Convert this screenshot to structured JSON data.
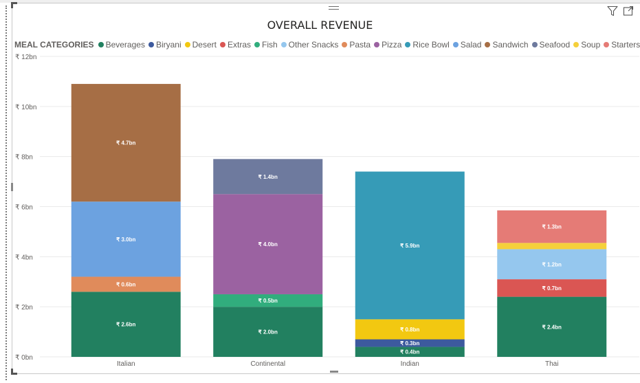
{
  "title": "OVERALL REVENUE",
  "legend": {
    "title": "MEAL CATEGORIES",
    "items": [
      {
        "label": "Beverages",
        "color": "#228060"
      },
      {
        "label": "Biryani",
        "color": "#3D5A9E"
      },
      {
        "label": "Desert",
        "color": "#F2C811"
      },
      {
        "label": "Extras",
        "color": "#DA5653"
      },
      {
        "label": "Fish",
        "color": "#31AD7D"
      },
      {
        "label": "Other Snacks",
        "color": "#95C7EE"
      },
      {
        "label": "Pasta",
        "color": "#E08B5B"
      },
      {
        "label": "Pizza",
        "color": "#9B62A1"
      },
      {
        "label": "Rice Bowl",
        "color": "#369BB7"
      },
      {
        "label": "Salad",
        "color": "#6CA2E0"
      },
      {
        "label": "Sandwich",
        "color": "#A66E45"
      },
      {
        "label": "Seafood",
        "color": "#6E7A9E"
      },
      {
        "label": "Soup",
        "color": "#F5D03B"
      },
      {
        "label": "Starters",
        "color": "#E57B76"
      }
    ]
  },
  "icons": {
    "filter": "filter-icon",
    "focus": "focus-mode-icon",
    "drag": "drag-handle-icon"
  },
  "chart_data": {
    "type": "bar",
    "stacked": true,
    "title": "OVERALL REVENUE",
    "legend_title": "MEAL CATEGORIES",
    "legend_position": "top-left",
    "grid": true,
    "ylim": [
      0,
      12
    ],
    "y_ticks": [
      "₹ 0bn",
      "₹ 2bn",
      "₹ 4bn",
      "₹ 6bn",
      "₹ 8bn",
      "₹ 10bn",
      "₹ 12bn"
    ],
    "y_tick_values": [
      0,
      2,
      4,
      6,
      8,
      10,
      12
    ],
    "categories": [
      "Italian",
      "Continental",
      "Indian",
      "Thai"
    ],
    "series": [
      {
        "name": "Beverages",
        "color": "#228060",
        "values": [
          2.6,
          2.0,
          0.4,
          2.4
        ],
        "labels": [
          "₹ 2.6bn",
          "₹ 2.0bn",
          "₹ 0.4bn",
          "₹ 2.4bn"
        ]
      },
      {
        "name": "Biryani",
        "color": "#3D5A9E",
        "values": [
          0,
          0,
          0.3,
          0
        ],
        "labels": [
          "",
          "",
          "₹ 0.3bn",
          ""
        ]
      },
      {
        "name": "Desert",
        "color": "#F2C811",
        "values": [
          0,
          0,
          0.8,
          0
        ],
        "labels": [
          "",
          "",
          "₹ 0.8bn",
          ""
        ]
      },
      {
        "name": "Extras",
        "color": "#DA5653",
        "values": [
          0,
          0,
          0,
          0.7
        ],
        "labels": [
          "",
          "",
          "",
          "₹ 0.7bn"
        ]
      },
      {
        "name": "Fish",
        "color": "#31AD7D",
        "values": [
          0,
          0.5,
          0,
          0
        ],
        "labels": [
          "",
          "₹ 0.5bn",
          "",
          ""
        ]
      },
      {
        "name": "Other Snacks",
        "color": "#95C7EE",
        "values": [
          0,
          0,
          0,
          1.2
        ],
        "labels": [
          "",
          "",
          "",
          "₹ 1.2bn"
        ]
      },
      {
        "name": "Pasta",
        "color": "#E08B5B",
        "values": [
          0.6,
          0,
          0,
          0
        ],
        "labels": [
          "₹ 0.6bn",
          "",
          "",
          ""
        ]
      },
      {
        "name": "Pizza",
        "color": "#9B62A1",
        "values": [
          0,
          4.0,
          0,
          0
        ],
        "labels": [
          "",
          "₹ 4.0bn",
          "",
          ""
        ]
      },
      {
        "name": "Rice Bowl",
        "color": "#369BB7",
        "values": [
          0,
          0,
          5.9,
          0
        ],
        "labels": [
          "",
          "",
          "₹ 5.9bn",
          ""
        ]
      },
      {
        "name": "Salad",
        "color": "#6CA2E0",
        "values": [
          3.0,
          0,
          0,
          0
        ],
        "labels": [
          "₹ 3.0bn",
          "",
          "",
          ""
        ]
      },
      {
        "name": "Sandwich",
        "color": "#A66E45",
        "values": [
          4.7,
          0,
          0,
          0
        ],
        "labels": [
          "₹ 4.7bn",
          "",
          "",
          ""
        ]
      },
      {
        "name": "Seafood",
        "color": "#6E7A9E",
        "values": [
          0,
          1.4,
          0,
          0
        ],
        "labels": [
          "",
          "₹ 1.4bn",
          "",
          ""
        ]
      },
      {
        "name": "Soup",
        "color": "#F5D03B",
        "values": [
          0,
          0,
          0,
          0.25
        ],
        "labels": [
          "",
          "",
          "",
          ""
        ]
      },
      {
        "name": "Starters",
        "color": "#E57B76",
        "values": [
          0,
          0,
          0,
          1.3
        ],
        "labels": [
          "",
          "",
          "",
          "₹ 1.3bn"
        ]
      }
    ]
  }
}
